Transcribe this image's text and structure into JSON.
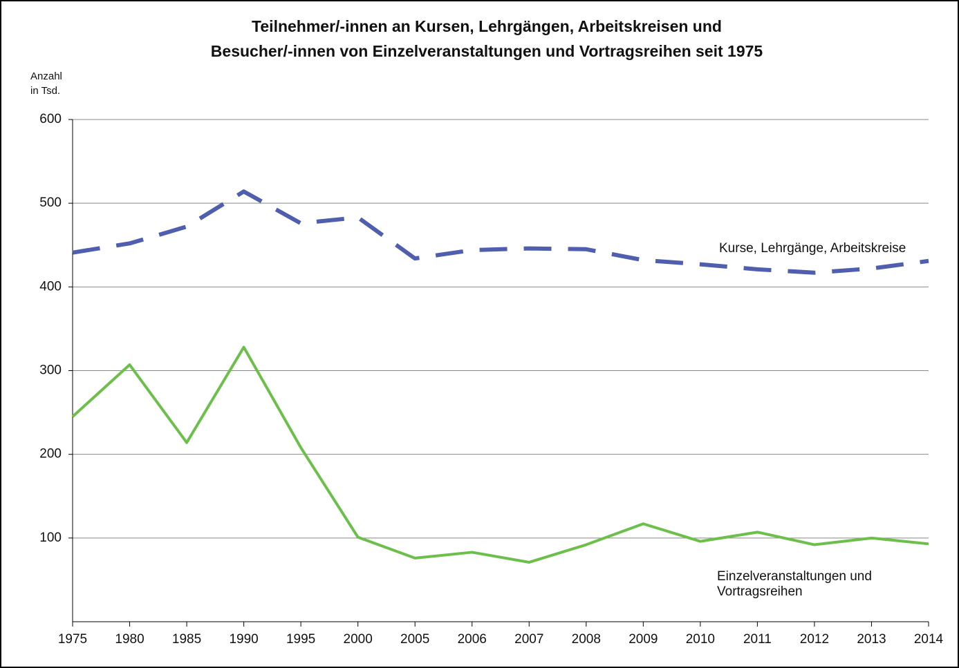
{
  "chart_data": {
    "type": "line",
    "title": [
      "Teilnehmer/-innen an Kursen, Lehrgängen, Arbeitskreisen und",
      "Besucher/-innen von Einzelveranstaltungen und Vortragsreihen seit 1975"
    ],
    "y_label": [
      "Anzahl",
      "in Tsd."
    ],
    "categories": [
      "1975",
      "1980",
      "1985",
      "1990",
      "1995",
      "2000",
      "2005",
      "2006",
      "2007",
      "2008",
      "2009",
      "2010",
      "2011",
      "2012",
      "2013",
      "2014"
    ],
    "series": [
      {
        "name": "Kurse, Lehrgänge, Arbeitskreise",
        "color": "#4f5fad",
        "dashed": true,
        "values": [
          441,
          452,
          472,
          514,
          476,
          483,
          434,
          444,
          446,
          445,
          432,
          427,
          421,
          417,
          422,
          431
        ]
      },
      {
        "name": "Einzelveranstaltungen und Vortragsreihen",
        "color": "#6cbf4b",
        "dashed": false,
        "values": [
          245,
          307,
          214,
          328,
          208,
          101,
          76,
          83,
          71,
          92,
          117,
          96,
          107,
          92,
          100,
          93
        ]
      }
    ],
    "ylim": [
      0,
      600
    ],
    "yticks": [
      100,
      200,
      300,
      400,
      500,
      600
    ],
    "grid": true
  }
}
